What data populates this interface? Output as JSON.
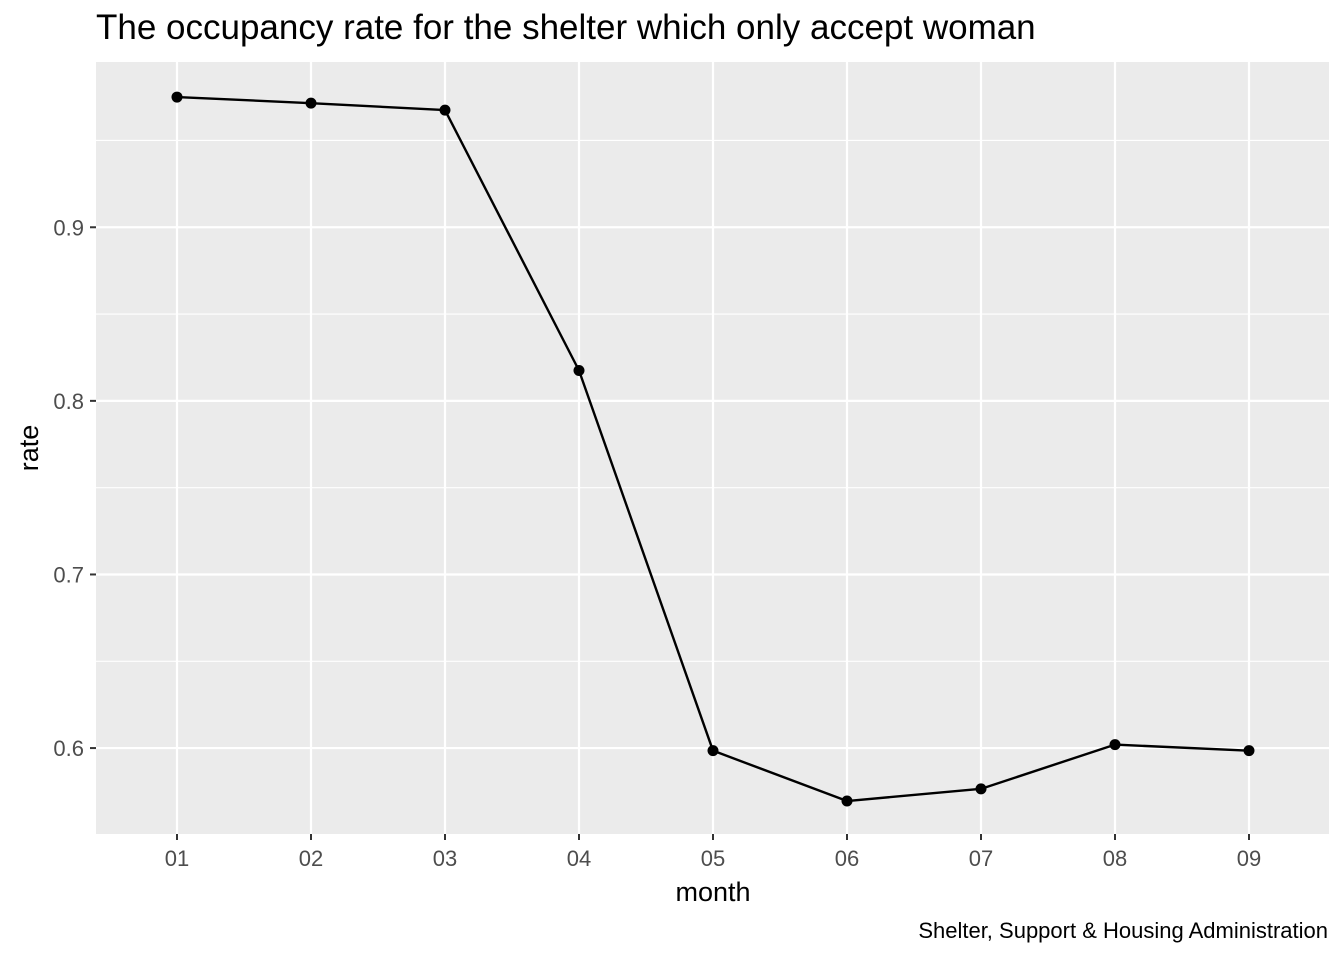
{
  "chart_data": {
    "type": "line",
    "title": "The occupancy rate for the shelter which only accept woman",
    "caption": "Shelter, Support & Housing Administration",
    "xlabel": "month",
    "ylabel": "rate",
    "categories": [
      "01",
      "02",
      "03",
      "04",
      "05",
      "06",
      "07",
      "08",
      "09"
    ],
    "series": [
      {
        "values": [
          0.975,
          0.9715,
          0.9675,
          0.8175,
          0.5985,
          0.5695,
          0.5765,
          0.602,
          0.5985
        ]
      }
    ],
    "ylim": [
      0.5505,
      0.9952
    ],
    "yticks": [
      0.6,
      0.7,
      0.8,
      0.9
    ],
    "ytick_labels": [
      "0.6",
      "0.7",
      "0.8",
      "0.9"
    ],
    "grid": true,
    "panel_color": "#ebebeb",
    "grid_color": "#ffffff",
    "line_color": "#000000"
  }
}
